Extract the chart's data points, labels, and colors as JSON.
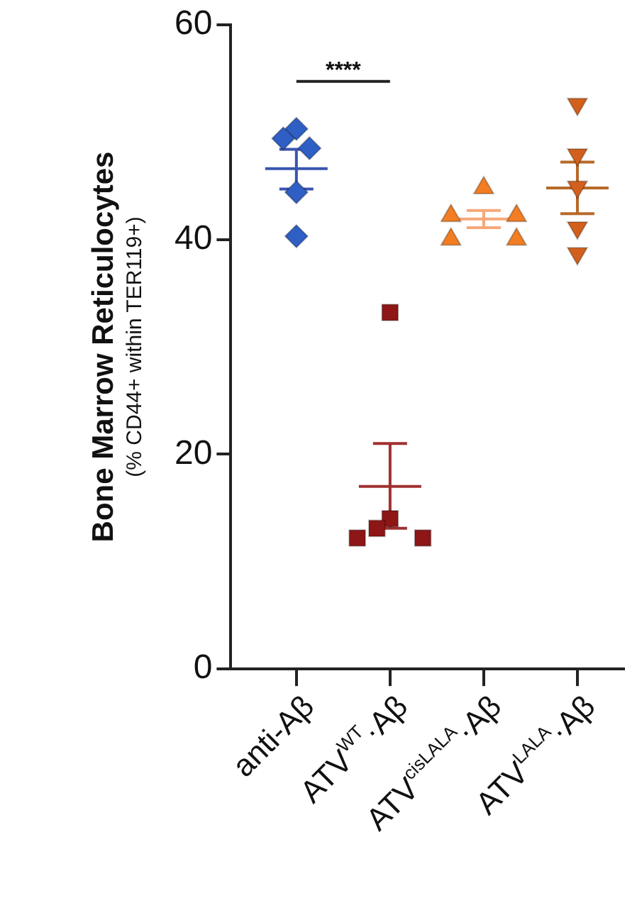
{
  "chart_data": {
    "type": "scatter",
    "ylabel": "Bone Marrow Reticulocytes\n(% CD44+ within TER119+)",
    "categories": [
      "anti-Aβ",
      "ATV$^{WT}$·Aβ",
      "ATV$^{cisLALA}$·Aβ",
      "ATV$^{LALA}$·Aβ"
    ],
    "ylim": [
      0,
      60
    ],
    "yticks": [
      0,
      20,
      40,
      60
    ],
    "grid": false,
    "legend": false,
    "annotations": [
      "****"
    ],
    "series": [
      {
        "type": "scatter",
        "marker": "diamond",
        "color": "#2f5fc4",
        "x": [
          "anti-Aβ",
          "anti-Aβ",
          "anti-Aβ",
          "anti-Aβ",
          "anti-Aβ"
        ],
        "values": [
          50.3,
          49.4,
          48.5,
          44.4,
          40.3
        ]
      },
      {
        "type": "scatter",
        "marker": "square",
        "color": "#8e1616",
        "x": [
          "ATV$^{WT}$·Aβ",
          "ATV$^{WT}$·Aβ",
          "ATV$^{WT}$·Aβ",
          "ATV$^{WT}$·Aβ",
          "ATV$^{WT}$·Aβ"
        ],
        "values": [
          33.2,
          14.0,
          13.1,
          12.2,
          12.2
        ]
      },
      {
        "type": "scatter",
        "marker": "triangle",
        "color": "#f27d22",
        "x": [
          "ATV$^{cisLALA}$·Aβ",
          "ATV$^{cisLALA}$·Aβ",
          "ATV$^{cisLALA}$·Aβ",
          "ATV$^{cisLALA}$·Aβ",
          "ATV$^{cisLALA}$·Aβ"
        ],
        "values": [
          44.8,
          42.2,
          42.2,
          40.0,
          40.0
        ]
      },
      {
        "type": "scatter",
        "marker": "triangle-down",
        "color": "#d2601c",
        "x": [
          "ATV$^{LALA}$·Aβ",
          "ATV$^{LALA}$·Aβ",
          "ATV$^{LALA}$·Aβ",
          "ATV$^{LALA}$·Aβ",
          "ATV$^{LALA}$·Aβ"
        ],
        "values": [
          52.6,
          47.9,
          44.9,
          41.1,
          38.7
        ]
      },
      {
        "type": "box",
        "colors": [
          "#3a55b0",
          "#a03030",
          "#f5a878",
          "#b86a28"
        ],
        "boxes": [
          {
            "low": 44.7,
            "q1": 46.6,
            "median": 46.6,
            "q3": 46.6,
            "high": 48.4
          },
          {
            "low": 13.1,
            "q1": 17.0,
            "median": 17.0,
            "q3": 17.0,
            "high": 21.0
          },
          {
            "low": 41.1,
            "q1": 41.9,
            "median": 41.9,
            "q3": 41.9,
            "high": 42.7
          },
          {
            "low": 42.4,
            "q1": 44.8,
            "median": 44.8,
            "q3": 44.8,
            "high": 47.2
          }
        ]
      }
    ]
  }
}
